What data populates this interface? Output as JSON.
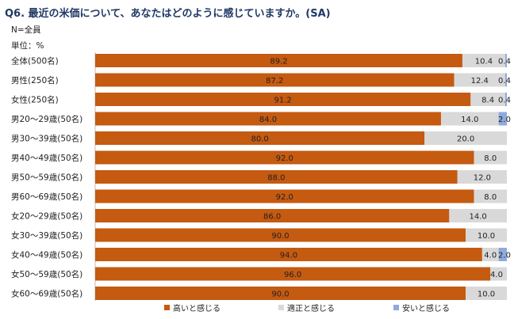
{
  "header": {
    "title": "Q6. 最近の米価について、あなたはどのように感じていますか。(SA)",
    "base": "N=全員",
    "unit": "単位：%"
  },
  "colors": {
    "high": "#c55a11",
    "fair": "#d9d9d9",
    "cheap": "#8faadc"
  },
  "chart_data": {
    "type": "bar",
    "orientation": "horizontal",
    "stacked": "100%",
    "categories": [
      "全体(500名)",
      "男性(250名)",
      "女性(250名)",
      "男20～29歳(50名)",
      "男30～39歳(50名)",
      "男40～49歳(50名)",
      "男50～59歳(50名)",
      "男60～69歳(50名)",
      "女20～29歳(50名)",
      "女30～39歳(50名)",
      "女40～49歳(50名)",
      "女50～59歳(50名)",
      "女60～69歳(50名)"
    ],
    "series": [
      {
        "name": "高いと感じる",
        "values": [
          89.2,
          87.2,
          91.2,
          84.0,
          80.0,
          92.0,
          88.0,
          92.0,
          86.0,
          90.0,
          94.0,
          96.0,
          90.0
        ]
      },
      {
        "name": "適正と感じる",
        "values": [
          10.4,
          12.4,
          8.4,
          14.0,
          20.0,
          8.0,
          12.0,
          8.0,
          14.0,
          10.0,
          4.0,
          4.0,
          10.0
        ]
      },
      {
        "name": "安いと感じる",
        "values": [
          0.4,
          0.4,
          0.4,
          2.0,
          0.0,
          0.0,
          0.0,
          0.0,
          0.0,
          0.0,
          2.0,
          0.0,
          0.0
        ]
      }
    ],
    "labels": [
      [
        "89.2",
        "10.4",
        "0.4"
      ],
      [
        "87.2",
        "12.4",
        "0.4"
      ],
      [
        "91.2",
        "8.4",
        "0.4"
      ],
      [
        "84.0",
        "14.0",
        "2.0"
      ],
      [
        "80.0",
        "20.0",
        ""
      ],
      [
        "92.0",
        "8.0",
        ""
      ],
      [
        "88.0",
        "12.0",
        ""
      ],
      [
        "92.0",
        "8.0",
        ""
      ],
      [
        "86.0",
        "14.0",
        ""
      ],
      [
        "90.0",
        "10.0",
        ""
      ],
      [
        "94.0",
        "4.0",
        "2.0"
      ],
      [
        "96.0",
        "4.0",
        ""
      ],
      [
        "90.0",
        "10.0",
        ""
      ]
    ],
    "xlim": [
      0,
      100
    ],
    "legend": "bottom",
    "grid": false
  }
}
